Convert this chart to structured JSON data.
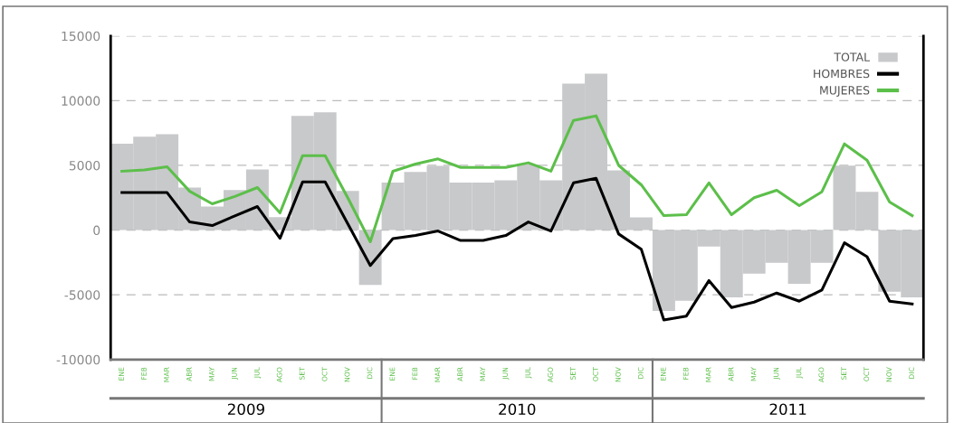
{
  "chart_data": {
    "type": "bar",
    "categories": [
      "ENE",
      "FEB",
      "MAR",
      "ABR",
      "MAY",
      "JUN",
      "JUL",
      "AGO",
      "SET",
      "OCT",
      "NOV",
      "DIC",
      "ENE",
      "FEB",
      "MAR",
      "ABR",
      "MAY",
      "JUN",
      "JUL",
      "AGO",
      "SET",
      "OCT",
      "NOV",
      "DIC",
      "ENE",
      "FEB",
      "MAR",
      "ABR",
      "MAY",
      "JUN",
      "JUL",
      "AGO",
      "SET",
      "OCT",
      "NOV",
      "DIC"
    ],
    "series": [
      {
        "name": "TOTAL",
        "color": "#c8c9cb",
        "values": [
          6680,
          7220,
          7410,
          3290,
          1820,
          3100,
          4690,
          1000,
          8830,
          9110,
          3020,
          -4240,
          3670,
          4490,
          4970,
          3670,
          3670,
          3850,
          5050,
          3850,
          11310,
          12080,
          4620,
          980,
          -6240,
          -5460,
          -1260,
          -5190,
          -3360,
          -2520,
          -4140,
          -2520,
          4990,
          2950,
          -4760,
          -5190
        ]
      },
      {
        "name": "HOMBRES",
        "type": "line",
        "color": "#000000",
        "values": [
          2900,
          2900,
          2900,
          630,
          350,
          1100,
          1820,
          -630,
          3720,
          3720,
          500,
          -2730,
          -660,
          -420,
          -70,
          -800,
          -800,
          -420,
          630,
          -70,
          3650,
          4000,
          -300,
          -1470,
          -6940,
          -6640,
          -3900,
          -5980,
          -5560,
          -4860,
          -5490,
          -4630,
          -980,
          -2050,
          -5490,
          -5700
        ]
      },
      {
        "name": "MUJERES",
        "type": "line",
        "color": "#5cbf4a",
        "values": [
          4550,
          4650,
          4900,
          3000,
          2030,
          2600,
          3290,
          1330,
          5750,
          5750,
          2500,
          -900,
          4550,
          5100,
          5500,
          4840,
          4840,
          4840,
          5200,
          4550,
          8480,
          8830,
          5000,
          3500,
          1120,
          1190,
          3650,
          1190,
          2500,
          3080,
          1890,
          2960,
          6660,
          5400,
          2170,
          1120
        ]
      }
    ],
    "ylim": [
      -10000,
      15000
    ],
    "yticks": [
      -10000,
      -5000,
      0,
      5000,
      10000,
      15000
    ],
    "grid": "y",
    "legend": "top right",
    "line_style": "solid",
    "marker": "none",
    "annotations": [
      "2009",
      "2010",
      "2011"
    ]
  }
}
